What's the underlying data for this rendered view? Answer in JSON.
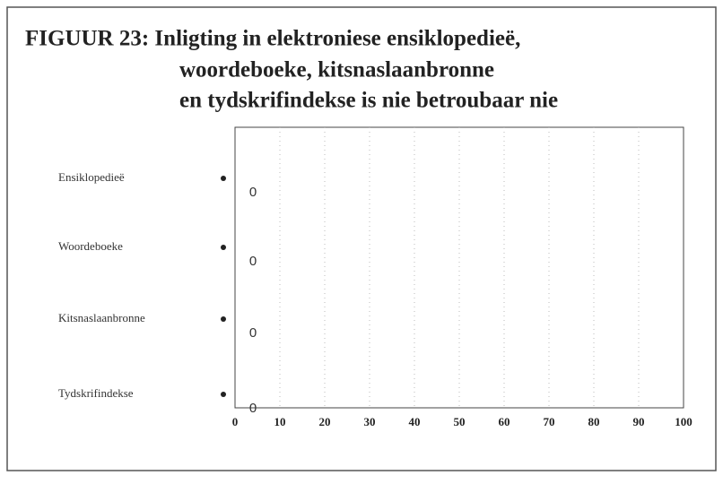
{
  "chart_data": {
    "type": "bar",
    "orientation": "horizontal",
    "title": [
      "FIGUUR 23: Inligting in elektroniese ensiklopedieë,",
      "woordeboeke, kitsnaslaanbronne",
      "en tydskrifindekse is nie betroubaar nie"
    ],
    "categories": [
      "Ensiklopedieë",
      "Woordeboeke",
      "Kitsnaslaanbronne",
      "Tydskrifindekse"
    ],
    "values": [
      0,
      0,
      0,
      0
    ],
    "color": "#444444",
    "xlim": [
      0,
      100
    ],
    "xticks": [
      0,
      10,
      20,
      30,
      40,
      50,
      60,
      70,
      80,
      90,
      100
    ],
    "grid": true
  }
}
